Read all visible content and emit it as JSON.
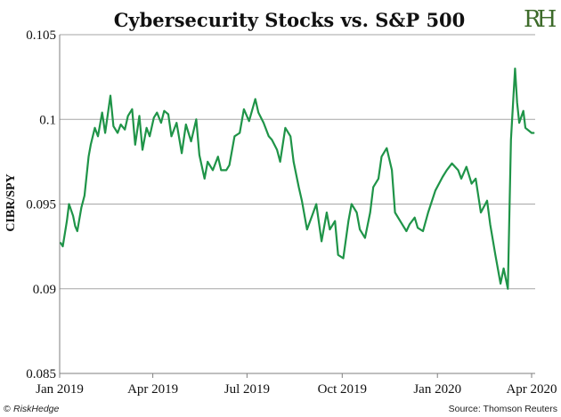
{
  "chart_data": {
    "type": "line",
    "title": "Cybersecurity Stocks vs. S&P 500",
    "ylabel": "CIBR/SPY",
    "xlabel": "",
    "ylim": [
      0.085,
      0.105
    ],
    "yticks": [
      "0.105",
      "0.1",
      "0.095",
      "0.09",
      "0.085"
    ],
    "ytick_values": [
      0.105,
      0.1,
      0.095,
      0.09,
      0.085
    ],
    "xticks": [
      "Jan 2019",
      "Apr 2019",
      "Jul 2019",
      "Oct 2019",
      "Jan 2020",
      "Apr 2020"
    ],
    "xtick_values": [
      "2019-01-01",
      "2019-04-01",
      "2019-07-01",
      "2019-10-01",
      "2020-01-01",
      "2020-04-01"
    ],
    "grid": "horizontal",
    "line_color": "#1f9448",
    "series": [
      {
        "name": "",
        "x": [
          "2019-01-02",
          "2019-01-04",
          "2019-01-08",
          "2019-01-10",
          "2019-01-14",
          "2019-01-16",
          "2019-01-18",
          "2019-01-22",
          "2019-01-25",
          "2019-01-29",
          "2019-01-31",
          "2019-02-04",
          "2019-02-07",
          "2019-02-11",
          "2019-02-14",
          "2019-02-19",
          "2019-02-22",
          "2019-02-26",
          "2019-03-01",
          "2019-03-05",
          "2019-03-08",
          "2019-03-12",
          "2019-03-15",
          "2019-03-19",
          "2019-03-22",
          "2019-03-26",
          "2019-03-29",
          "2019-04-02",
          "2019-04-05",
          "2019-04-09",
          "2019-04-12",
          "2019-04-16",
          "2019-04-19",
          "2019-04-24",
          "2019-04-29",
          "2019-05-03",
          "2019-05-08",
          "2019-05-13",
          "2019-05-16",
          "2019-05-21",
          "2019-05-24",
          "2019-05-29",
          "2019-06-03",
          "2019-06-06",
          "2019-06-11",
          "2019-06-14",
          "2019-06-19",
          "2019-06-24",
          "2019-06-28",
          "2019-07-03",
          "2019-07-09",
          "2019-07-12",
          "2019-07-17",
          "2019-07-22",
          "2019-07-25",
          "2019-07-30",
          "2019-08-02",
          "2019-08-07",
          "2019-08-12",
          "2019-08-15",
          "2019-08-20",
          "2019-08-23",
          "2019-08-28",
          "2019-09-03",
          "2019-09-06",
          "2019-09-11",
          "2019-09-16",
          "2019-09-19",
          "2019-09-24",
          "2019-09-27",
          "2019-10-02",
          "2019-10-07",
          "2019-10-10",
          "2019-10-15",
          "2019-10-18",
          "2019-10-23",
          "2019-10-28",
          "2019-10-31",
          "2019-11-05",
          "2019-11-08",
          "2019-11-13",
          "2019-11-18",
          "2019-11-21",
          "2019-11-26",
          "2019-12-02",
          "2019-12-05",
          "2019-12-10",
          "2019-12-13",
          "2019-12-18",
          "2019-12-23",
          "2019-12-30",
          "2020-01-06",
          "2020-01-10",
          "2020-01-15",
          "2020-01-21",
          "2020-01-24",
          "2020-01-29",
          "2020-02-03",
          "2020-02-07",
          "2020-02-12",
          "2020-02-18",
          "2020-02-21",
          "2020-02-26",
          "2020-03-02",
          "2020-03-05",
          "2020-03-09",
          "2020-03-12",
          "2020-03-16",
          "2020-03-18",
          "2020-03-20",
          "2020-03-24",
          "2020-03-26",
          "2020-03-30",
          "2020-04-01",
          "2020-04-03"
        ],
        "y": [
          0.0927,
          0.0925,
          0.094,
          0.095,
          0.0943,
          0.0937,
          0.0934,
          0.0948,
          0.0955,
          0.0978,
          0.0985,
          0.0995,
          0.099,
          0.1004,
          0.0992,
          0.1014,
          0.0996,
          0.0992,
          0.0997,
          0.0994,
          0.1002,
          0.1006,
          0.0985,
          0.1002,
          0.0982,
          0.0995,
          0.099,
          0.1001,
          0.1004,
          0.0998,
          0.1005,
          0.1003,
          0.099,
          0.0998,
          0.098,
          0.0997,
          0.0987,
          0.1,
          0.0979,
          0.0965,
          0.0975,
          0.097,
          0.0978,
          0.097,
          0.097,
          0.0973,
          0.099,
          0.0992,
          0.1006,
          0.0999,
          0.1012,
          0.1004,
          0.0998,
          0.099,
          0.0988,
          0.0982,
          0.0975,
          0.0995,
          0.099,
          0.0975,
          0.096,
          0.0952,
          0.0935,
          0.0945,
          0.095,
          0.0928,
          0.0945,
          0.0935,
          0.094,
          0.092,
          0.0918,
          0.094,
          0.095,
          0.0945,
          0.0935,
          0.093,
          0.0945,
          0.096,
          0.0965,
          0.0978,
          0.0983,
          0.097,
          0.0945,
          0.094,
          0.0934,
          0.0938,
          0.0942,
          0.0936,
          0.0934,
          0.0945,
          0.0958,
          0.0966,
          0.097,
          0.0974,
          0.097,
          0.0965,
          0.0972,
          0.0962,
          0.0965,
          0.0945,
          0.0952,
          0.0938,
          0.092,
          0.0903,
          0.0912,
          0.09,
          0.0988,
          0.103,
          0.101,
          0.0998,
          0.1005,
          0.0995,
          0.0993,
          0.0992,
          0.0992
        ]
      }
    ],
    "source": "Source: Thomson Reuters",
    "brand": "RiskHedge",
    "copyright": "©",
    "logo": "RH"
  }
}
